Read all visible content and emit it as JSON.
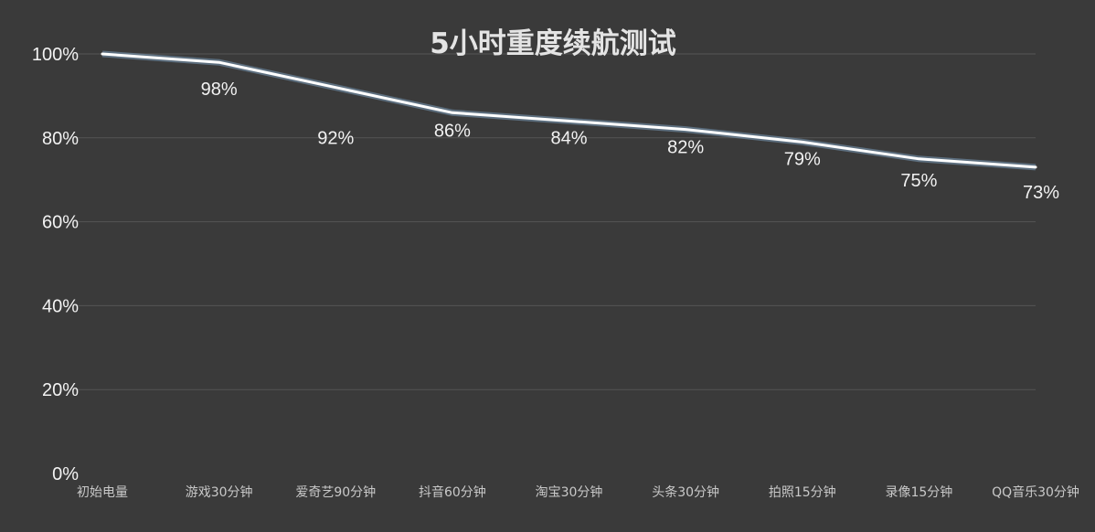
{
  "chart_data": {
    "type": "line",
    "title": "5小时重度续航测试",
    "xlabel": "",
    "ylabel": "",
    "categories": [
      "初始电量",
      "游戏30分钟",
      "爱奇艺90分钟",
      "抖音60分钟",
      "淘宝30分钟",
      "头条30分钟",
      "拍照15分钟",
      "录像15分钟",
      "QQ音乐30分钟"
    ],
    "series": [
      {
        "values": [
          100,
          98,
          92,
          86,
          84,
          82,
          79,
          75,
          73
        ]
      }
    ],
    "data_labels": [
      "",
      "98%",
      "92%",
      "86%",
      "84%",
      "82%",
      "79%",
      "75%",
      "73%"
    ],
    "y_ticks": [
      "0%",
      "20%",
      "40%",
      "60%",
      "80%",
      "100%"
    ],
    "ylim": [
      0,
      100
    ],
    "grid": true,
    "legend": "none",
    "colors": {
      "background": "#3a3a3a",
      "line": "#ffffff",
      "grid": "#555555"
    }
  }
}
